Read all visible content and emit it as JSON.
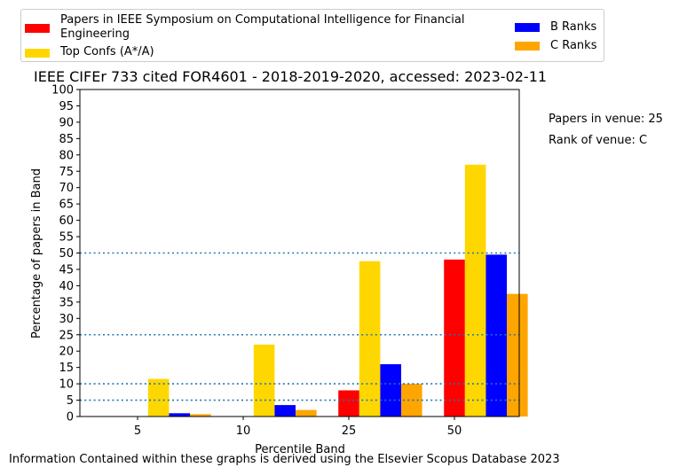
{
  "chart_data": {
    "type": "bar",
    "title": "IEEE CIFEr 733 cited FOR4601 - 2018-2019-2020, accessed: 2023-02-11",
    "xlabel": "Percentile Band",
    "ylabel": "Percentage of papers in Band",
    "categories": [
      "5",
      "10",
      "25",
      "50"
    ],
    "ylim": [
      0,
      100
    ],
    "yticks": [
      0,
      5,
      10,
      15,
      20,
      25,
      30,
      35,
      40,
      45,
      50,
      55,
      60,
      65,
      70,
      75,
      80,
      85,
      90,
      95,
      100
    ],
    "reference_lines": [
      5,
      10,
      25,
      50
    ],
    "grid": false,
    "legend_position": "top",
    "series": [
      {
        "name": "Papers in IEEE Symposium on Computational Intelligence for Financial Engineering",
        "color": "#ff0000",
        "values": [
          0,
          0,
          8,
          48
        ]
      },
      {
        "name": "Top Confs (A*/A)",
        "color": "#ffd700",
        "values": [
          11.5,
          22,
          47.5,
          77
        ]
      },
      {
        "name": "B Ranks",
        "color": "#0000ff",
        "values": [
          1,
          3.5,
          16,
          49.5
        ]
      },
      {
        "name": "C Ranks",
        "color": "#ffa500",
        "values": [
          0.7,
          2,
          10,
          37.5
        ]
      }
    ]
  },
  "side_notes": {
    "papers_in_venue": "Papers in venue: 25",
    "rank_of_venue": "Rank of venue: C"
  },
  "footer": "Information Contained within these graphs is derived using the Elsevier Scopus Database 2023"
}
